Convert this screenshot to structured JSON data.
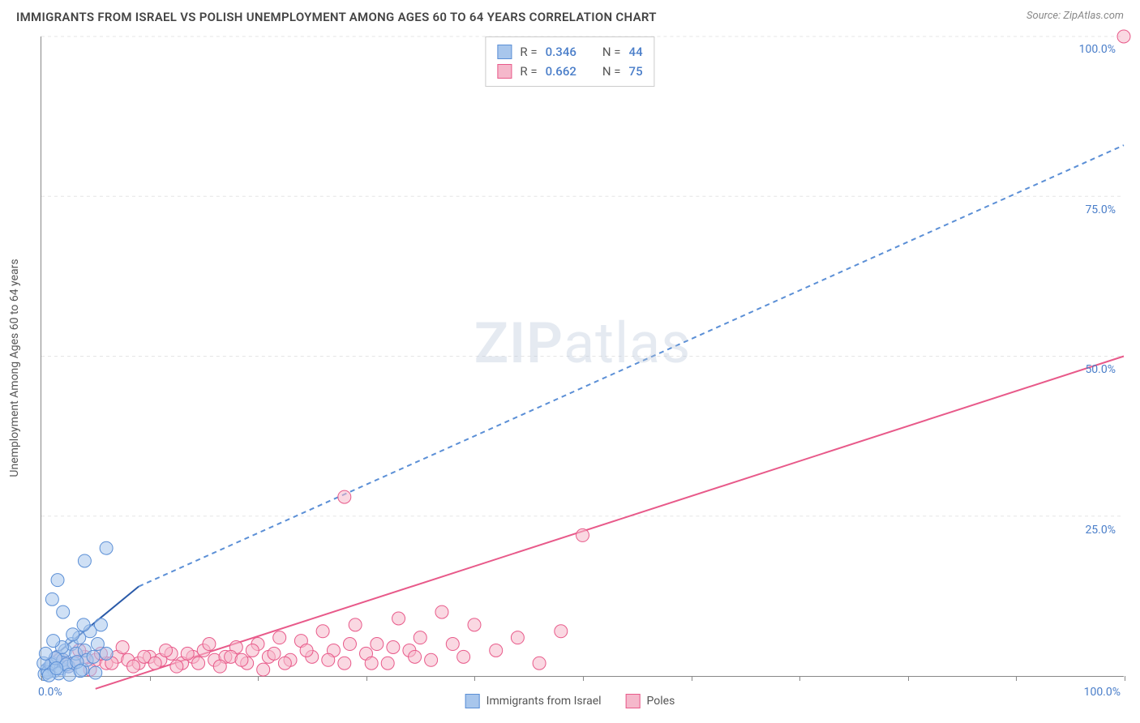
{
  "title": "IMMIGRANTS FROM ISRAEL VS POLISH UNEMPLOYMENT AMONG AGES 60 TO 64 YEARS CORRELATION CHART",
  "source": "Source: ZipAtlas.com",
  "watermark_a": "ZIP",
  "watermark_b": "atlas",
  "y_axis_title": "Unemployment Among Ages 60 to 64 years",
  "chart": {
    "type": "scatter",
    "background_color": "#ffffff",
    "grid_color": "#e5e5e5",
    "axis_color": "#888888",
    "xlim": [
      0,
      100
    ],
    "ylim": [
      0,
      100
    ],
    "x_ticks": [
      0,
      10,
      20,
      30,
      40,
      50,
      60,
      70,
      80,
      90,
      100
    ],
    "y_ticks": [
      25,
      50,
      75,
      100
    ],
    "y_tick_labels": [
      "25.0%",
      "50.0%",
      "75.0%",
      "100.0%"
    ],
    "x_origin_label": "0.0%",
    "x_max_label": "100.0%",
    "title_fontsize": 15,
    "label_fontsize": 14,
    "tick_color": "#4a7ec9",
    "marker_radius": 8,
    "marker_opacity": 0.55,
    "line_width": 2,
    "dash_pattern": "6,5"
  },
  "series": {
    "israel": {
      "label": "Immigrants from Israel",
      "color_fill": "#a8c6ec",
      "color_stroke": "#5b8fd6",
      "r_label": "R =",
      "r_value": "0.346",
      "n_label": "N =",
      "n_value": "44",
      "trend_solid": {
        "x1": 0,
        "y1": 1.5,
        "x2": 9,
        "y2": 14
      },
      "trend_dash": {
        "x1": 9,
        "y1": 14,
        "x2": 100,
        "y2": 83
      },
      "points": [
        [
          0.5,
          1
        ],
        [
          0.8,
          1.5
        ],
        [
          1,
          2
        ],
        [
          1.2,
          0.8
        ],
        [
          1.5,
          3
        ],
        [
          1.8,
          1.2
        ],
        [
          2,
          2.5
        ],
        [
          2.2,
          4
        ],
        [
          2.5,
          1.5
        ],
        [
          2.8,
          5
        ],
        [
          3,
          2
        ],
        [
          3.2,
          3.5
        ],
        [
          3.5,
          6
        ],
        [
          3.8,
          1
        ],
        [
          4,
          4
        ],
        [
          4.2,
          2.5
        ],
        [
          4.5,
          7
        ],
        [
          4.8,
          3
        ],
        [
          5,
          0.5
        ],
        [
          5.2,
          5
        ],
        [
          5.5,
          8
        ],
        [
          6,
          3.5
        ],
        [
          1,
          12
        ],
        [
          1.5,
          15
        ],
        [
          2,
          10
        ],
        [
          4,
          18
        ],
        [
          6,
          20
        ],
        [
          0.3,
          0.3
        ],
        [
          0.6,
          0.6
        ],
        [
          0.9,
          1.8
        ],
        [
          1.3,
          2.8
        ],
        [
          1.6,
          0.4
        ],
        [
          1.9,
          4.5
        ],
        [
          2.3,
          1.8
        ],
        [
          2.6,
          0.2
        ],
        [
          2.9,
          6.5
        ],
        [
          3.3,
          2.2
        ],
        [
          3.6,
          0.8
        ],
        [
          3.9,
          8
        ],
        [
          0.2,
          2
        ],
        [
          0.4,
          3.5
        ],
        [
          0.7,
          0.1
        ],
        [
          1.1,
          5.5
        ],
        [
          1.4,
          1.2
        ]
      ]
    },
    "poles": {
      "label": "Poles",
      "color_fill": "#f5b8cb",
      "color_stroke": "#e85a8a",
      "r_label": "R =",
      "r_value": "0.662",
      "n_label": "N =",
      "n_value": "75",
      "trend_solid": {
        "x1": 5,
        "y1": -2,
        "x2": 100,
        "y2": 50
      },
      "points": [
        [
          1,
          2
        ],
        [
          2,
          2.5
        ],
        [
          3,
          2
        ],
        [
          4,
          3
        ],
        [
          5,
          2.5
        ],
        [
          6,
          2
        ],
        [
          7,
          3
        ],
        [
          8,
          2.5
        ],
        [
          9,
          2
        ],
        [
          10,
          3
        ],
        [
          11,
          2.5
        ],
        [
          12,
          3.5
        ],
        [
          13,
          2
        ],
        [
          14,
          3
        ],
        [
          15,
          4
        ],
        [
          16,
          2.5
        ],
        [
          17,
          3
        ],
        [
          18,
          4.5
        ],
        [
          19,
          2
        ],
        [
          20,
          5
        ],
        [
          21,
          3
        ],
        [
          22,
          6
        ],
        [
          23,
          2.5
        ],
        [
          24,
          5.5
        ],
        [
          25,
          3
        ],
        [
          26,
          7
        ],
        [
          27,
          4
        ],
        [
          28,
          2
        ],
        [
          29,
          8
        ],
        [
          30,
          3.5
        ],
        [
          31,
          5
        ],
        [
          32,
          2
        ],
        [
          33,
          9
        ],
        [
          34,
          4
        ],
        [
          35,
          6
        ],
        [
          36,
          2.5
        ],
        [
          37,
          10
        ],
        [
          38,
          5
        ],
        [
          39,
          3
        ],
        [
          40,
          8
        ],
        [
          42,
          4
        ],
        [
          44,
          6
        ],
        [
          46,
          2
        ],
        [
          48,
          7
        ],
        [
          28,
          28
        ],
        [
          50,
          22
        ],
        [
          1.5,
          3
        ],
        [
          2.5,
          1.5
        ],
        [
          3.5,
          4
        ],
        [
          4.5,
          1
        ],
        [
          5.5,
          3.5
        ],
        [
          6.5,
          2
        ],
        [
          7.5,
          4.5
        ],
        [
          8.5,
          1.5
        ],
        [
          9.5,
          3
        ],
        [
          10.5,
          2
        ],
        [
          11.5,
          4
        ],
        [
          12.5,
          1.5
        ],
        [
          13.5,
          3.5
        ],
        [
          14.5,
          2
        ],
        [
          15.5,
          5
        ],
        [
          16.5,
          1.5
        ],
        [
          17.5,
          3
        ],
        [
          18.5,
          2.5
        ],
        [
          19.5,
          4
        ],
        [
          20.5,
          1
        ],
        [
          21.5,
          3.5
        ],
        [
          22.5,
          2
        ],
        [
          24.5,
          4
        ],
        [
          26.5,
          2.5
        ],
        [
          28.5,
          5
        ],
        [
          30.5,
          2
        ],
        [
          32.5,
          4.5
        ],
        [
          34.5,
          3
        ],
        [
          100,
          100
        ]
      ]
    }
  }
}
